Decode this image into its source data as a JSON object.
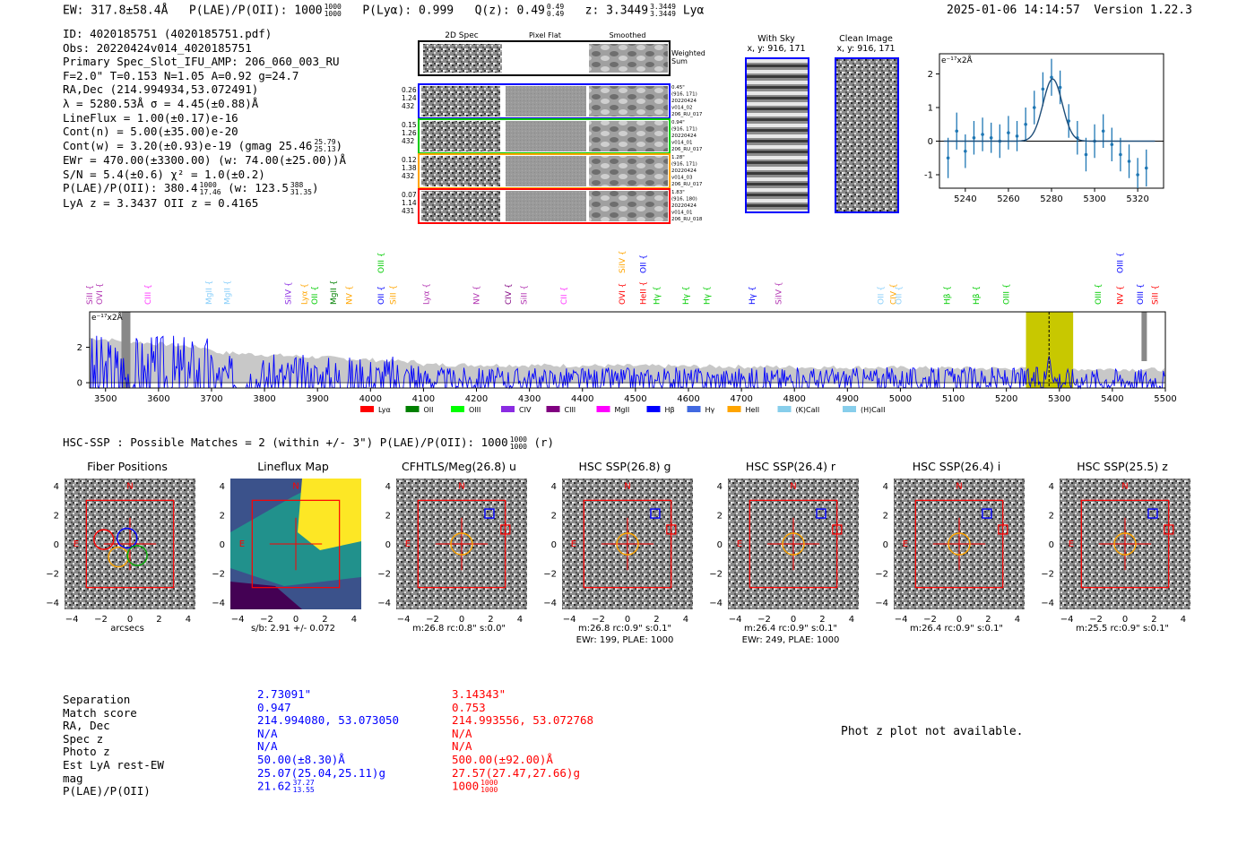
{
  "header": {
    "ew": "EW: 317.8±58.4Å",
    "plae_label": "P(LAE)/P(OII): 1000",
    "plae_hi": "1000",
    "plae_lo": "1000",
    "plya": "P(Lyα): 0.999",
    "qz_label": "Q(z): 0.49",
    "qz_hi": "0.49",
    "qz_lo": "0.49",
    "z_label": "z: 3.3449",
    "z_hi": "3.3449",
    "z_lo": "3.3449",
    "z_line": "Lyα",
    "datetime": "2025-01-06 14:14:57",
    "version": "Version 1.22.3"
  },
  "info": {
    "id": "ID: 4020185751 (4020185751.pdf)",
    "obs": "Obs: 20220424v014_4020185751",
    "primary": "Primary Spec_Slot_IFU_AMP: 206_060_003_RU",
    "fwhm": "F=2.0\"  T=0.153  N=1.05  A=0.92  g=24.7",
    "radec": "RA,Dec (214.994934,53.072491)",
    "lambda": "λ = 5280.53Å  σ = 4.45(±0.88)Å",
    "lineflux": "LineFlux = 1.00(±0.17)e-16",
    "contn": "Cont(n) = 5.00(±35.00)e-20",
    "contw": "Cont(w) = 3.20(±0.93)e-19 (gmag 25.46",
    "contw_hi": "25.79",
    "contw_lo": "25.13",
    "contw_end": ")",
    "ewr": "EWr = 470.00(±3300.00) (w: 74.00(±25.00))Å",
    "sn": "S/N = 5.4(±0.6)  χ² = 1.0(±0.2)",
    "plae": "P(LAE)/P(OII): 380.4",
    "plae_hi": "1000",
    "plae_lo": "17.46",
    "plae_w": "(w: 123.5",
    "plae_w_hi": "388",
    "plae_w_lo": "31.35",
    "plae_end": ")",
    "redshifts": "LyA z = 3.3437  OII z = 0.4165"
  },
  "cutouts": {
    "col_2d": "2D Spec",
    "col_flat": "Pixel Flat",
    "col_smooth": "Smoothed",
    "weighted": "Weighted",
    "weighted2": "Sum",
    "rows": [
      {
        "w1": "0.26",
        "w2": "1.24",
        "w3": "432",
        "r1": "0.45\"",
        "r2": "(916, 171)",
        "r3": "20220424",
        "r4": "v014_02",
        "r5": "206_RU_017",
        "color": "#0000ff"
      },
      {
        "w1": "0.15",
        "w2": "1.26",
        "w3": "432",
        "r1": "0.94\"",
        "r2": "(916, 171)",
        "r3": "20220424",
        "r4": "v014_01",
        "r5": "206_RU_017",
        "color": "#00cc00"
      },
      {
        "w1": "0.12",
        "w2": "1.38",
        "w3": "432",
        "r1": "1.28\"",
        "r2": "(916, 171)",
        "r3": "20220424",
        "r4": "v014_03",
        "r5": "206_RU_017",
        "color": "#ffa500"
      },
      {
        "w1": "0.07",
        "w2": "1.14",
        "w3": "431",
        "r1": "1.83\"",
        "r2": "(916, 180)",
        "r3": "20220424",
        "r4": "v014_01",
        "r5": "206_RU_018",
        "color": "#ff0000"
      }
    ],
    "with_sky": "With Sky",
    "with_sky_xy": "x, y: 916, 171",
    "clean": "Clean Image",
    "clean_xy": "x, y: 916, 171"
  },
  "chart_data": [
    {
      "type": "line",
      "name": "zoom-spectrum",
      "unit_label": "e⁻¹⁷x2Å",
      "xlim": [
        5228,
        5332
      ],
      "ylim": [
        -1.4,
        2.6
      ],
      "xticks": [
        5240,
        5260,
        5280,
        5300,
        5320
      ],
      "yticks": [
        -1,
        0,
        1,
        2
      ],
      "data_x": [
        5232,
        5236,
        5240,
        5244,
        5248,
        5252,
        5256,
        5260,
        5264,
        5268,
        5272,
        5276,
        5280,
        5284,
        5288,
        5292,
        5296,
        5300,
        5304,
        5308,
        5312,
        5316,
        5320,
        5324
      ],
      "data_y": [
        -0.5,
        0.3,
        -0.3,
        0.1,
        0.2,
        0.1,
        0.0,
        0.25,
        0.15,
        0.5,
        1.0,
        1.55,
        1.9,
        1.6,
        0.6,
        0.1,
        -0.4,
        0.0,
        0.3,
        -0.1,
        -0.4,
        -0.6,
        -1.0,
        -0.8
      ],
      "errors": [
        0.6,
        0.55,
        0.5,
        0.5,
        0.5,
        0.45,
        0.5,
        0.5,
        0.45,
        0.5,
        0.5,
        0.5,
        0.55,
        0.5,
        0.5,
        0.5,
        0.5,
        0.5,
        0.5,
        0.5,
        0.5,
        0.5,
        0.5,
        0.55
      ],
      "fit": {
        "center": 5280.53,
        "sigma": 4.45,
        "amplitude": 1.85
      }
    },
    {
      "type": "line",
      "name": "full-spectrum",
      "unit_label": "e⁻¹⁷x2Å",
      "xlim": [
        3470,
        5500
      ],
      "ylim": [
        -0.3,
        4.0
      ],
      "xticks": [
        3500,
        3600,
        3700,
        3800,
        3900,
        4000,
        4100,
        4200,
        4300,
        4400,
        4500,
        4600,
        4700,
        4800,
        4900,
        5000,
        5100,
        5200,
        5300,
        5400,
        5500
      ],
      "yticks": [
        0,
        2
      ],
      "highlight": [
        5237,
        5326
      ],
      "line_marker": 5280.5,
      "lines": [
        {
          "label": "SiII",
          "x": 3465,
          "color": "#b030b0",
          "row": 1
        },
        {
          "label": "OVI",
          "x": 3494,
          "color": "#b030b0",
          "row": 1
        },
        {
          "label": "CIII",
          "x": 3585,
          "color": "#ff33ff",
          "row": 1
        },
        {
          "label": "MgII",
          "x": 3700,
          "color": "#87cefa",
          "row": 1
        },
        {
          "label": "MgII",
          "x": 3735,
          "color": "#87cefa",
          "row": 1
        },
        {
          "label": "SiIV",
          "x": 3850,
          "color": "#8a2be2",
          "row": 1
        },
        {
          "label": "Lyα",
          "x": 3880,
          "color": "#ffa500",
          "row": 1
        },
        {
          "label": "OII",
          "x": 3900,
          "color": "#00cc00",
          "row": 1
        },
        {
          "label": "MgII",
          "x": 3935,
          "color": "#008000",
          "row": 1
        },
        {
          "label": "NV",
          "x": 3965,
          "color": "#ffa500",
          "row": 1
        },
        {
          "label": "OIII",
          "x": 4025,
          "color": "#00cc00",
          "row": 2
        },
        {
          "label": "OII",
          "x": 4025,
          "color": "#0000ff",
          "row": 1
        },
        {
          "label": "SiII",
          "x": 4048,
          "color": "#ffa500",
          "row": 1
        },
        {
          "label": "Lyα",
          "x": 4110,
          "color": "#b030b0",
          "row": 1
        },
        {
          "label": "NV",
          "x": 4205,
          "color": "#b030b0",
          "row": 1
        },
        {
          "label": "CIV",
          "x": 4265,
          "color": "#800080",
          "row": 1
        },
        {
          "label": "SiII",
          "x": 4295,
          "color": "#b030b0",
          "row": 1
        },
        {
          "label": "CII",
          "x": 4370,
          "color": "#ff33ff",
          "row": 1
        },
        {
          "label": "OVI",
          "x": 4480,
          "color": "#ff0000",
          "row": 1
        },
        {
          "label": "SiIV",
          "x": 4480,
          "color": "#ffa500",
          "row": 2
        },
        {
          "label": "OII",
          "x": 4520,
          "color": "#0000ff",
          "row": 2
        },
        {
          "label": "HeII",
          "x": 4520,
          "color": "#ff0000",
          "row": 1
        },
        {
          "label": "Hγ",
          "x": 4545,
          "color": "#00cc00",
          "row": 1
        },
        {
          "label": "Hγ",
          "x": 4600,
          "color": "#00cc00",
          "row": 1
        },
        {
          "label": "Hγ",
          "x": 4640,
          "color": "#00cc00",
          "row": 1
        },
        {
          "label": "Hγ",
          "x": 4725,
          "color": "#0000ff",
          "row": 1
        },
        {
          "label": "SiIV",
          "x": 4775,
          "color": "#b030b0",
          "row": 1
        },
        {
          "label": "OII",
          "x": 4968,
          "color": "#87cefa",
          "row": 1
        },
        {
          "label": "CIV",
          "x": 4992,
          "color": "#ffa500",
          "row": 1
        },
        {
          "label": "OII",
          "x": 5002,
          "color": "#87cefa",
          "row": 1
        },
        {
          "label": "Hβ",
          "x": 5093,
          "color": "#00cc00",
          "row": 1
        },
        {
          "label": "Hβ",
          "x": 5148,
          "color": "#00cc00",
          "row": 1
        },
        {
          "label": "OIII",
          "x": 5205,
          "color": "#00cc00",
          "row": 1
        },
        {
          "label": "OIII",
          "x": 5378,
          "color": "#00cc00",
          "row": 1
        },
        {
          "label": "NV",
          "x": 5420,
          "color": "#ff0000",
          "row": 1
        },
        {
          "label": "OIII",
          "x": 5420,
          "color": "#0000ff",
          "row": 2
        },
        {
          "label": "OIII",
          "x": 5458,
          "color": "#0000ff",
          "row": 1
        },
        {
          "label": "SiII",
          "x": 5486,
          "color": "#ff0000",
          "row": 1
        }
      ],
      "legend": [
        {
          "label": "Lyα",
          "color": "#ff0000"
        },
        {
          "label": "OII",
          "color": "#008000"
        },
        {
          "label": "OIII",
          "color": "#00ff00"
        },
        {
          "label": "CIV",
          "color": "#8a2be2"
        },
        {
          "label": "CIII",
          "color": "#800080"
        },
        {
          "label": "MgII",
          "color": "#ff00ff"
        },
        {
          "label": "Hβ",
          "color": "#0000ff"
        },
        {
          "label": "Hγ",
          "color": "#4169e1"
        },
        {
          "label": "HeII",
          "color": "#ffa500"
        },
        {
          "label": "(K)CaII",
          "color": "#87ceeb"
        },
        {
          "label": "(H)CaII",
          "color": "#87ceeb"
        }
      ]
    }
  ],
  "hsc": {
    "line": "HSC-SSP : Possible Matches = 2 (within +/- 3\")  P(LAE)/P(OII): 1000",
    "hi": "1000",
    "lo": "1000",
    "end": "(r)"
  },
  "stamps": [
    {
      "title": "Fiber Positions",
      "cap1": "arcsecs",
      "cap2": "",
      "kind": "fiber"
    },
    {
      "title": "Lineflux Map",
      "cap1": "s/b: 2.91 +/- 0.072",
      "cap2": "",
      "kind": "flux"
    },
    {
      "title": "CFHTLS/Meg(26.8) u",
      "cap1": "m:26.8 rc:0.8\"  s:0.0\"",
      "cap2": "",
      "kind": "img"
    },
    {
      "title": "HSC SSP(26.8) g",
      "cap1": "m:26.8 rc:0.9\"  s:0.1\"",
      "cap2": "EWr: 199, PLAE: 1000",
      "kind": "img"
    },
    {
      "title": "HSC SSP(26.4) r",
      "cap1": "m:26.4 rc:0.9\"  s:0.1\"",
      "cap2": "EWr: 249, PLAE: 1000",
      "kind": "img"
    },
    {
      "title": "HSC SSP(26.4) i",
      "cap1": "m:26.4 rc:0.9\"  s:0.1\"",
      "cap2": "",
      "kind": "img"
    },
    {
      "title": "HSC SSP(25.5) z",
      "cap1": "m:25.5 rc:0.9\"  s:0.1\"",
      "cap2": "",
      "kind": "img"
    }
  ],
  "stamp_axes": {
    "ticks": [
      "−4",
      "−2",
      "0",
      "2",
      "4"
    ],
    "north": "N",
    "east": "E"
  },
  "matches": {
    "labels": [
      "Separation",
      "Match score",
      "RA, Dec",
      "Spec z",
      "Photo z",
      "Est LyA rest-EW",
      "mag",
      "P(LAE)/P(OII)"
    ],
    "m1": [
      "2.73091\"",
      "0.947",
      "214.994080, 53.073050",
      "N/A",
      "N/A",
      "50.00(±8.30)Å",
      "25.07(25.04,25.11)g",
      "21.62"
    ],
    "m1_plae_hi": "37.27",
    "m1_plae_lo": "13.55",
    "m2": [
      "3.14343\"",
      "0.753",
      "214.993556, 53.072768",
      "N/A",
      "N/A",
      "500.00(±92.00)Å",
      "27.57(27.47,27.66)g",
      "1000"
    ],
    "m2_plae_hi": "1000",
    "m2_plae_lo": "1000",
    "photz_note": "Phot z plot not available."
  }
}
